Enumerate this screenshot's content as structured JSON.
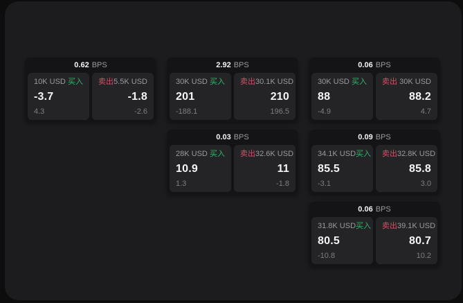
{
  "labels": {
    "bps_unit": "BPS",
    "buy": "买入",
    "sell": "卖出"
  },
  "colors": {
    "page_bg": "#0d0d0e",
    "panel_bg": "#1c1c1e",
    "card_bg": "#141416",
    "tile_bg": "#242427",
    "text_primary": "#f5f5f6",
    "text_muted": "#9a9a9f",
    "text_faint": "#7e7e83",
    "buy_green": "#36b26b",
    "sell_red": "#cf5064"
  },
  "cards": [
    {
      "row": 1,
      "col": 1,
      "bps": "0.62",
      "buy": {
        "size": "10K USD",
        "price": "-3.7",
        "delta": "4.3"
      },
      "sell": {
        "size": "5.5K USD",
        "price": "-1.8",
        "delta": "-2.6"
      }
    },
    {
      "row": 1,
      "col": 2,
      "bps": "2.92",
      "buy": {
        "size": "30K USD",
        "price": "201",
        "delta": "-188.1"
      },
      "sell": {
        "size": "30.1K USD",
        "price": "210",
        "delta": "196.5"
      }
    },
    {
      "row": 1,
      "col": 3,
      "bps": "0.06",
      "buy": {
        "size": "30K USD",
        "price": "88",
        "delta": "-4.9"
      },
      "sell": {
        "size": "30K USD",
        "price": "88.2",
        "delta": "4.7"
      }
    },
    {
      "row": 2,
      "col": 2,
      "bps": "0.03",
      "buy": {
        "size": "28K USD",
        "price": "10.9",
        "delta": "1.3"
      },
      "sell": {
        "size": "32.6K USD",
        "price": "11",
        "delta": "-1.8"
      }
    },
    {
      "row": 2,
      "col": 3,
      "bps": "0.09",
      "buy": {
        "size": "34.1K USD",
        "price": "85.5",
        "delta": "-3.1"
      },
      "sell": {
        "size": "32.8K USD",
        "price": "85.8",
        "delta": "3.0"
      }
    },
    {
      "row": 3,
      "col": 3,
      "bps": "0.06",
      "buy": {
        "size": "31.8K USD",
        "price": "80.5",
        "delta": "-10.8"
      },
      "sell": {
        "size": "39.1K USD",
        "price": "80.7",
        "delta": "10.2"
      }
    }
  ]
}
